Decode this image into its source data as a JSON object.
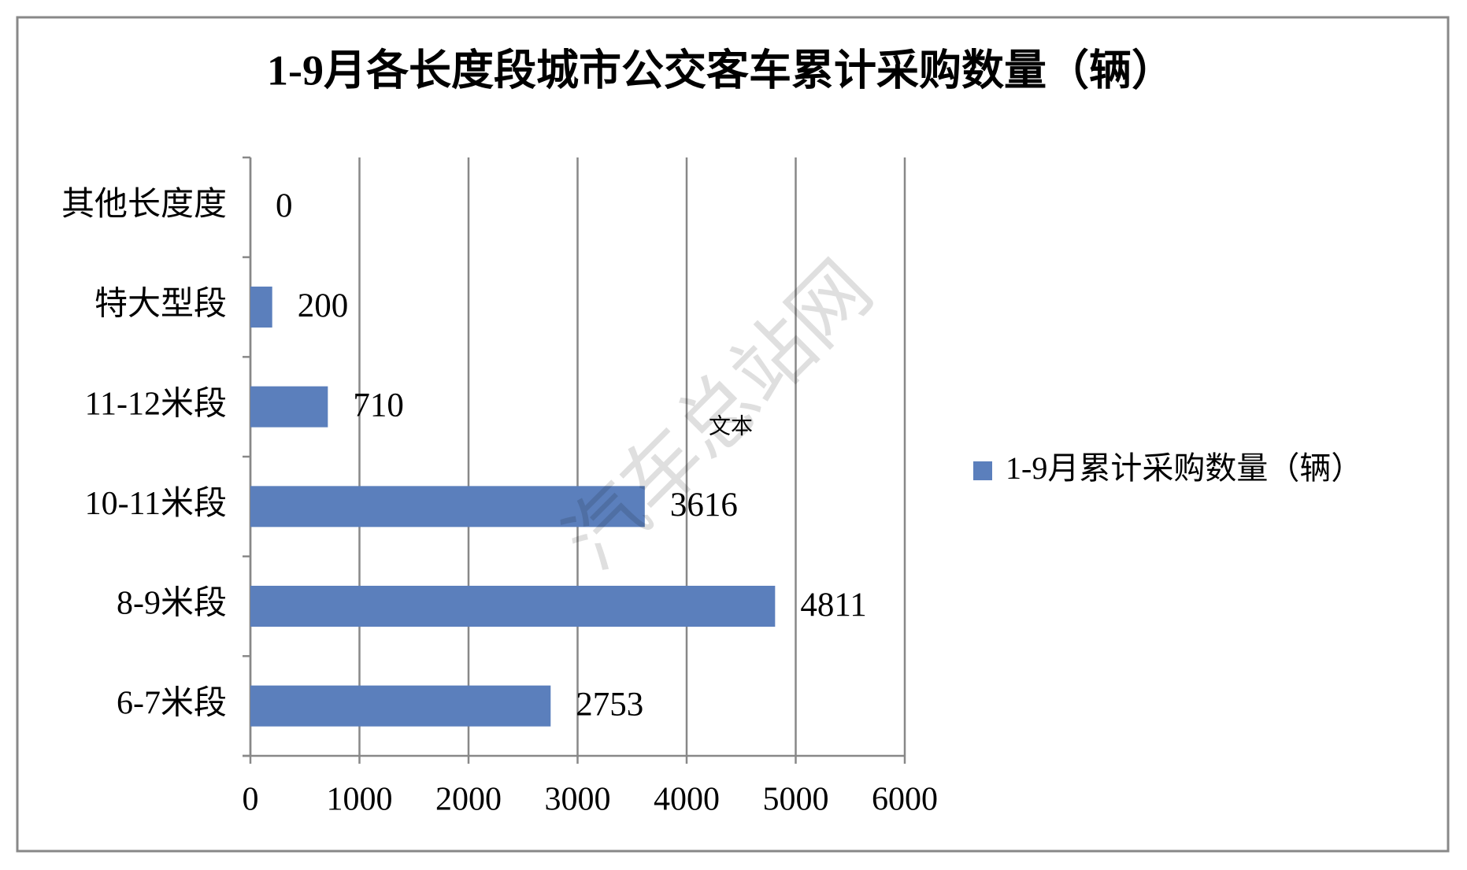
{
  "chart_data": {
    "type": "bar",
    "orientation": "horizontal",
    "title": "1-9月各长度段城市公交客车累计采购数量（辆）",
    "categories": [
      "6-7米段",
      "8-9米段",
      "10-11米段",
      "11-12米段",
      "特大型段",
      "其他长度度"
    ],
    "series": [
      {
        "name": "1-9月累计采购数量（辆）",
        "color": "#5b7fbc",
        "values": [
          2753,
          4811,
          3616,
          710,
          200,
          0
        ]
      }
    ],
    "xlim": [
      0,
      6000
    ],
    "xticks": [
      0,
      1000,
      2000,
      3000,
      4000,
      5000,
      6000
    ],
    "grid": true,
    "legend": "right",
    "annotations": [
      "文本",
      "汽车总站网"
    ]
  }
}
